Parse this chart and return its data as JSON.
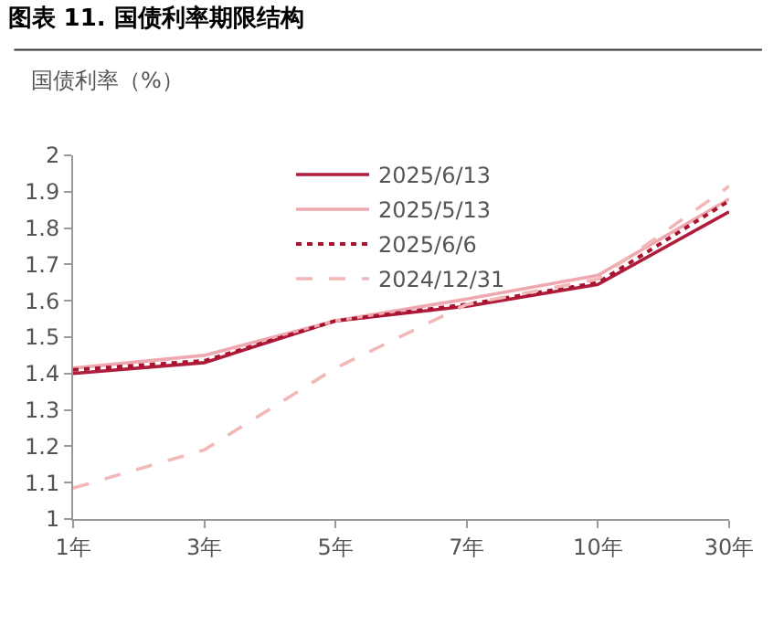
{
  "chart_data": {
    "type": "line",
    "title": "图表 11. 国债利率期限结构",
    "ylabel": "国债利率（%）",
    "categories": [
      "1年",
      "3年",
      "5年",
      "7年",
      "10年",
      "30年"
    ],
    "series": [
      {
        "name": "2025/6/13",
        "color": "#b01c3c",
        "line_style": "solid",
        "values": [
          1.4,
          1.43,
          1.545,
          1.585,
          1.645,
          1.845
        ]
      },
      {
        "name": "2025/5/13",
        "color": "#f0a8b0",
        "line_style": "solid",
        "values": [
          1.415,
          1.45,
          1.545,
          1.605,
          1.67,
          1.88
        ]
      },
      {
        "name": "2025/6/6",
        "color": "#a8142f",
        "line_style": "dotted",
        "values": [
          1.41,
          1.435,
          1.545,
          1.59,
          1.65,
          1.875
        ]
      },
      {
        "name": "2024/12/31",
        "color": "#f2b8b8",
        "line_style": "dashed",
        "values": [
          1.085,
          1.19,
          1.415,
          1.59,
          1.66,
          1.915
        ]
      }
    ],
    "ylim": [
      1,
      2
    ],
    "yticks": [
      1,
      1.1,
      1.2,
      1.3,
      1.4,
      1.5,
      1.6,
      1.7,
      1.8,
      1.9,
      2
    ],
    "legend": "top",
    "marker": "none"
  }
}
